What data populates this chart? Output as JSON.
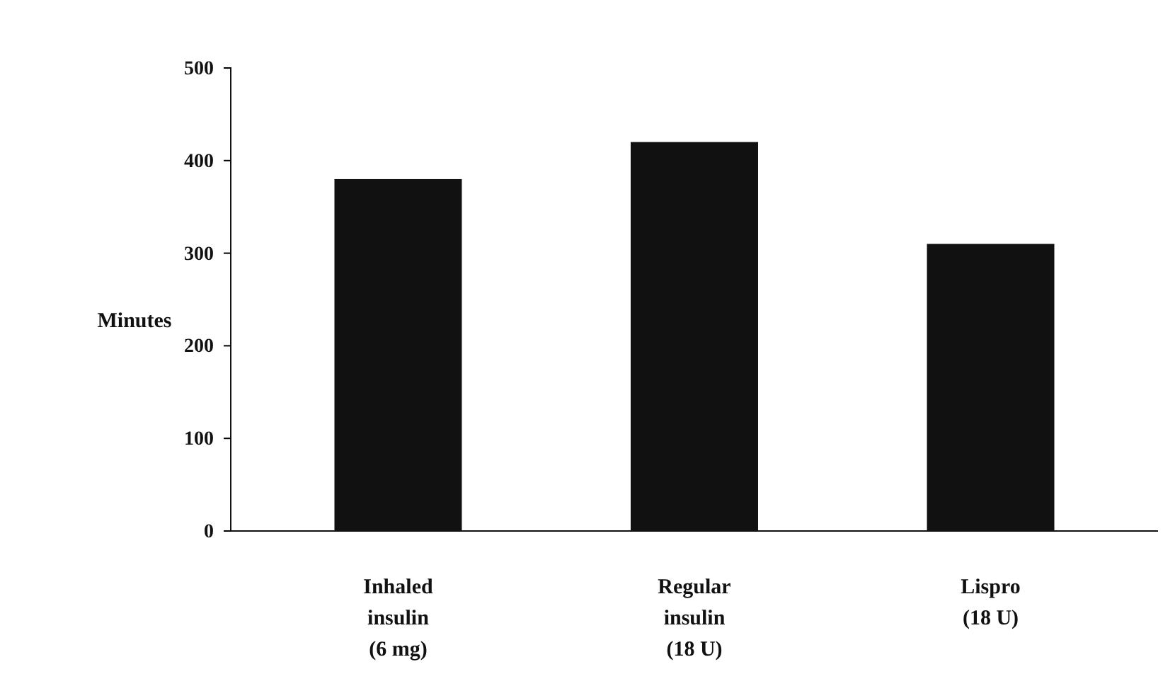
{
  "chart_data": {
    "type": "bar",
    "ylabel": "Minutes",
    "categories": [
      "Inhaled\ninsulin\n(6 mg)",
      "Regular\ninsulin\n(18 U)",
      "Lispro\n(18 U)"
    ],
    "values": [
      380,
      420,
      310
    ],
    "color": "#111111",
    "ylim": [
      0,
      500
    ],
    "yticks": [
      0,
      100,
      200,
      300,
      400,
      500
    ],
    "grid": false
  }
}
